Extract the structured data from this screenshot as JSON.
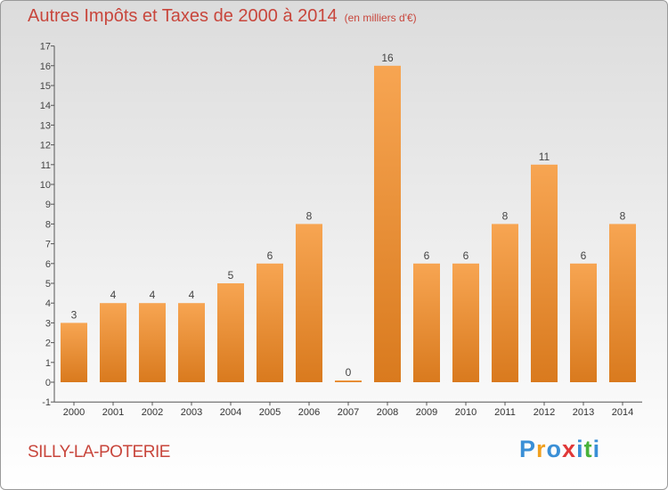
{
  "title": "Autres Impôts et Taxes de 2000 à 2014",
  "subtitle": "(en milliers d'€)",
  "place": "SILLY-LA-POTERIE",
  "logo": {
    "letters": [
      "P",
      "r",
      "o",
      "x",
      "i",
      "t",
      "i"
    ],
    "colors": [
      "#3a8fd6",
      "#f0a020",
      "#3a8fd6",
      "#e03838",
      "#3a8fd6",
      "#49b23a",
      "#3a8fd6"
    ]
  },
  "chart_data": {
    "type": "bar",
    "title": "Autres Impôts et Taxes de 2000 à 2014",
    "subtitle": "(en milliers d'€)",
    "xlabel": "",
    "ylabel": "",
    "categories": [
      "2000",
      "2001",
      "2002",
      "2003",
      "2004",
      "2005",
      "2006",
      "2007",
      "2008",
      "2009",
      "2010",
      "2011",
      "2012",
      "2013",
      "2014"
    ],
    "values": [
      3,
      4,
      4,
      4,
      5,
      6,
      8,
      0,
      16,
      6,
      6,
      8,
      11,
      6,
      8
    ],
    "ylim": [
      -1,
      17
    ],
    "yticks": [
      -1,
      0,
      1,
      2,
      3,
      4,
      5,
      6,
      7,
      8,
      9,
      10,
      11,
      12,
      13,
      14,
      15,
      16,
      17
    ],
    "grid": false,
    "legend": "none",
    "colors": {
      "bar_top": "#f7a552",
      "bar_bottom": "#d97a1e",
      "label": "#c8463c"
    }
  }
}
